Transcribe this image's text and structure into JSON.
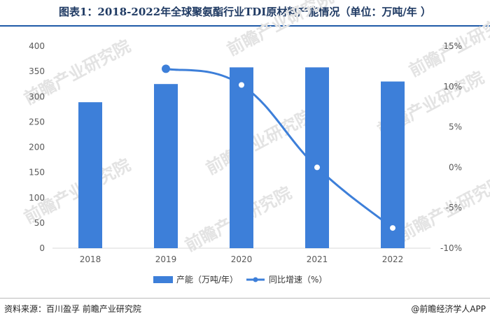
{
  "title": "图表1：2018-2022年全球聚氨酯行业TDI原材料产能情况（单位：万吨/年 ）",
  "footer": {
    "source": "资料来源：百川盈孚 前瞻产业研究院",
    "brand": "@前瞻经济学人APP"
  },
  "watermark": "前瞻产业研究院",
  "chart_data": {
    "type": "bar",
    "categories": [
      "2018",
      "2019",
      "2020",
      "2021",
      "2022"
    ],
    "series": [
      {
        "name": "产能（万吨/年）",
        "type": "bar",
        "axis": "left",
        "color": "#3d7fd9",
        "values": [
          289,
          325,
          358,
          358,
          330
        ]
      },
      {
        "name": "同比增速（%）",
        "type": "line",
        "axis": "right",
        "color": "#3d7fd9",
        "values": [
          null,
          12.2,
          10.2,
          0,
          -7.5
        ]
      }
    ],
    "y_left": {
      "ticks": [
        0,
        50,
        100,
        150,
        200,
        250,
        300,
        350,
        400
      ],
      "ylim": [
        0,
        400
      ]
    },
    "y_right": {
      "ticks": [
        "-10%",
        "-5%",
        "0%",
        "5%",
        "10%",
        "15%"
      ],
      "ylim": [
        -10,
        15
      ]
    },
    "legend": [
      "产能（万吨/年）",
      "同比增速（%）"
    ],
    "legend_position": "bottom",
    "grid": false
  }
}
